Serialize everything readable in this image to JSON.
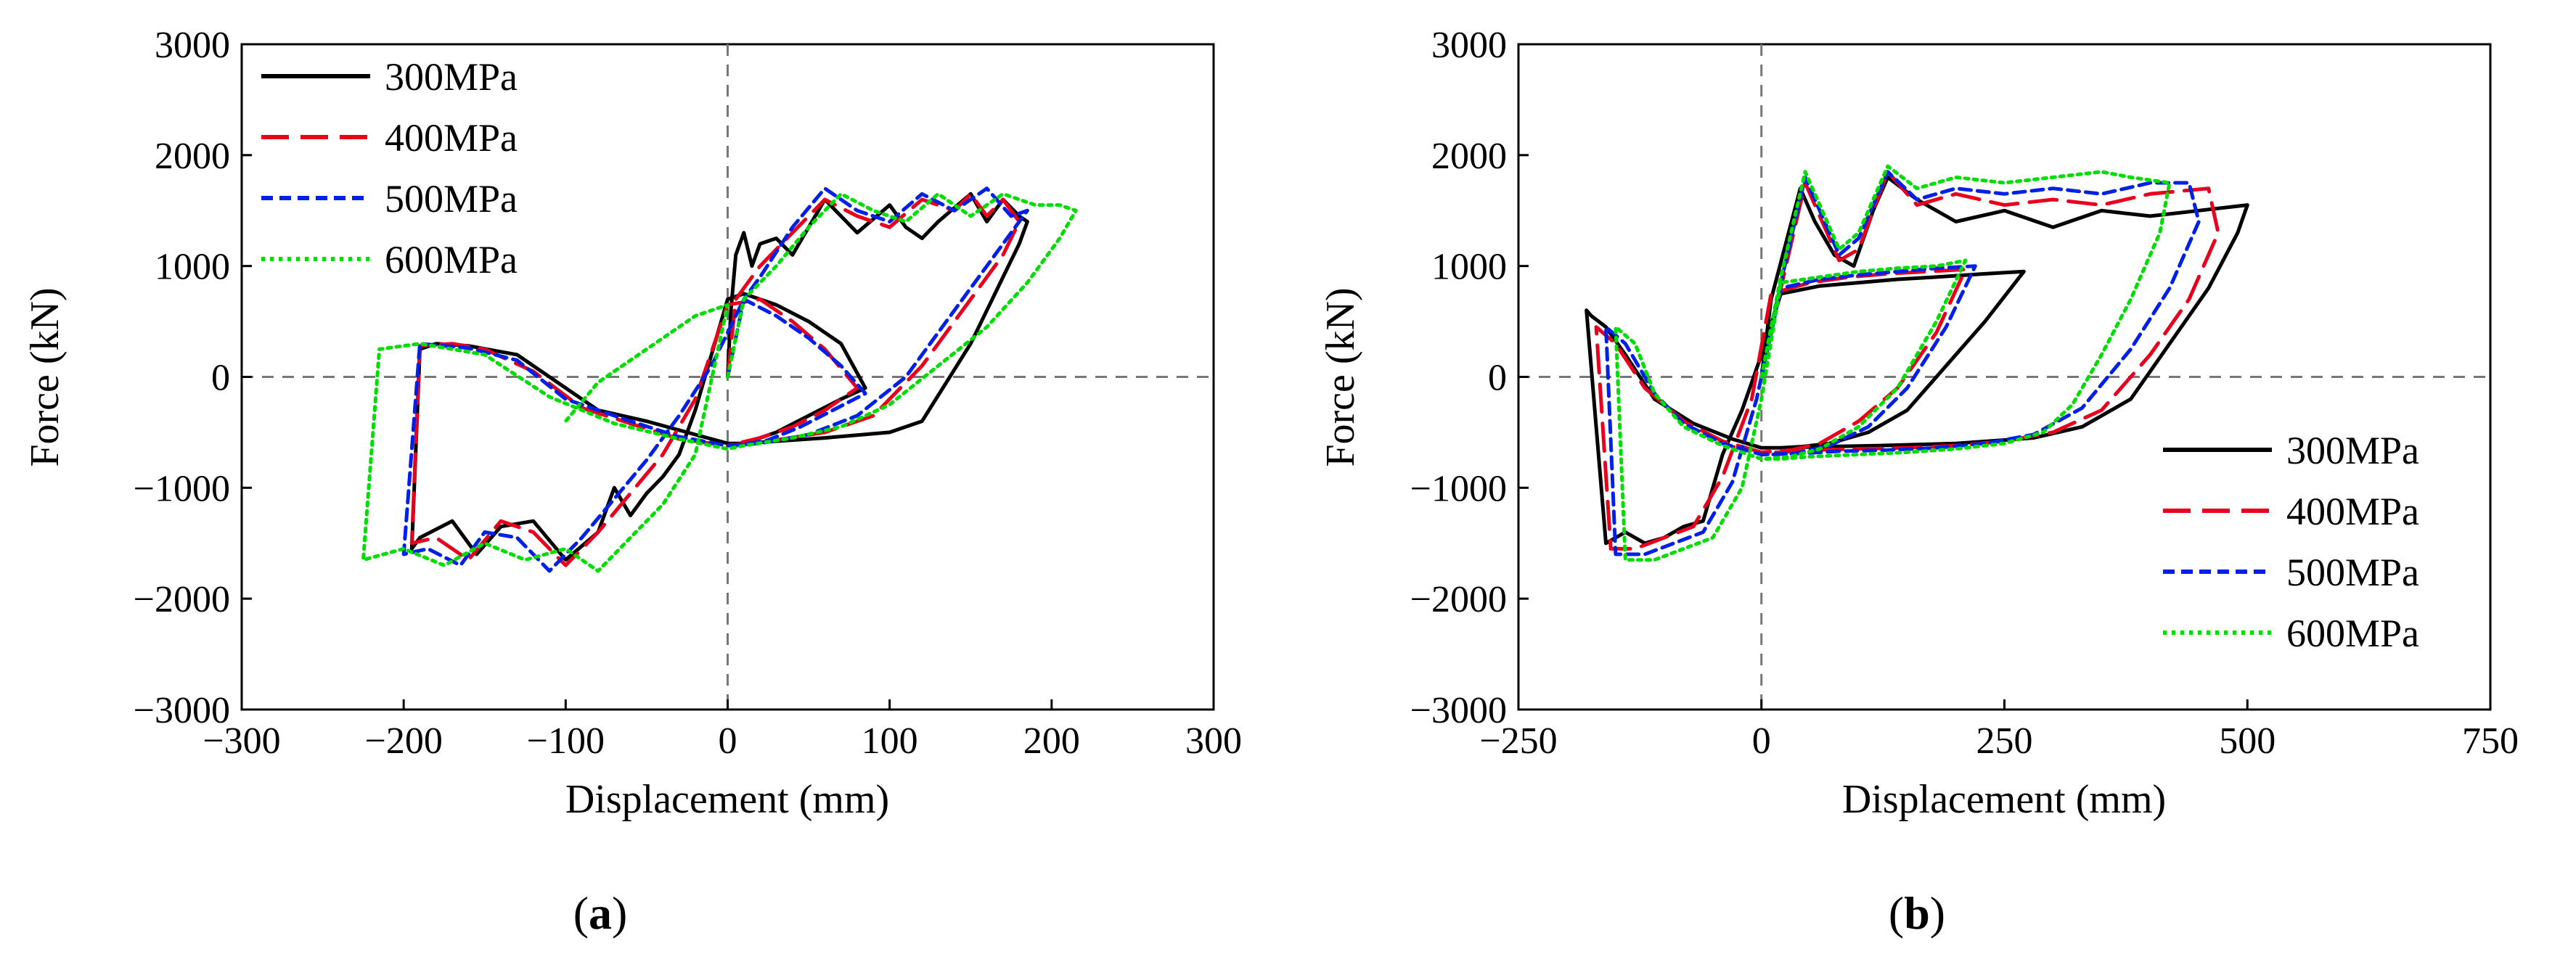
{
  "chart_data": [
    {
      "panel_label": "a",
      "type": "line",
      "title": "",
      "xlabel": "Displacement (mm)",
      "ylabel": "Force (kN)",
      "xlim": [
        -300,
        300
      ],
      "ylim": [
        -3000,
        3000
      ],
      "xticks": [
        -300,
        -200,
        -100,
        0,
        100,
        200,
        300
      ],
      "yticks": [
        -3000,
        -2000,
        -1000,
        0,
        1000,
        2000,
        3000
      ],
      "xtick_labels": [
        "−300",
        "−200",
        "−100",
        "0",
        "100",
        "200",
        "300"
      ],
      "ytick_labels": [
        "−3000",
        "−2000",
        "−1000",
        "0",
        "1000",
        "2000",
        "3000"
      ],
      "legend_position": "top-left",
      "reference_lines": {
        "x": 0,
        "y": 0
      },
      "series": [
        {
          "name": "300MPa",
          "color": "#000000",
          "dash": "solid",
          "x": [
            0,
            2,
            5,
            10,
            15,
            20,
            30,
            40,
            60,
            80,
            100,
            110,
            120,
            130,
            150,
            160,
            170,
            180,
            185,
            180,
            170,
            150,
            120,
            100,
            60,
            30,
            10,
            0,
            -20,
            -50,
            -80,
            -100,
            -130,
            -160,
            -180,
            -190,
            -195,
            -190,
            -170,
            -155,
            -140,
            -120,
            -100,
            -80,
            -70,
            -60,
            -50,
            -40,
            -30,
            -20,
            -10,
            0,
            10,
            20,
            30,
            50,
            70,
            85,
            70,
            50,
            30,
            10,
            0
          ],
          "y": [
            0,
            600,
            1100,
            1300,
            1000,
            1200,
            1250,
            1100,
            1600,
            1300,
            1550,
            1350,
            1250,
            1400,
            1650,
            1400,
            1600,
            1450,
            1400,
            1200,
            900,
            300,
            -400,
            -500,
            -550,
            -580,
            -600,
            -600,
            -520,
            -400,
            -300,
            -100,
            200,
            280,
            300,
            250,
            -1550,
            -1450,
            -1300,
            -1600,
            -1350,
            -1300,
            -1650,
            -1400,
            -1000,
            -1250,
            -1050,
            -900,
            -700,
            -300,
            200,
            700,
            750,
            700,
            650,
            500,
            300,
            -100,
            -200,
            -350,
            -500,
            -600,
            -600
          ]
        },
        {
          "name": "400MPa",
          "color": "#e8001c",
          "dash": "long-dash",
          "x": [
            0,
            5,
            10,
            20,
            40,
            60,
            80,
            100,
            120,
            140,
            150,
            160,
            170,
            180,
            170,
            150,
            120,
            90,
            60,
            30,
            0,
            -30,
            -60,
            -90,
            -120,
            -150,
            -170,
            -190,
            -195,
            -180,
            -160,
            -140,
            -120,
            -100,
            -80,
            -60,
            -40,
            -20,
            0,
            20,
            40,
            60,
            80,
            60,
            40,
            20,
            0
          ],
          "y": [
            0,
            700,
            800,
            1000,
            1300,
            1600,
            1450,
            1350,
            1600,
            1500,
            1650,
            1450,
            1600,
            1400,
            1100,
            700,
            100,
            -350,
            -500,
            -570,
            -620,
            -560,
            -420,
            -280,
            50,
            250,
            300,
            280,
            -1500,
            -1450,
            -1650,
            -1300,
            -1400,
            -1700,
            -1400,
            -1050,
            -700,
            -200,
            650,
            700,
            500,
            250,
            -100,
            -300,
            -450,
            -550,
            -620
          ]
        },
        {
          "name": "500MPa",
          "color": "#0020e8",
          "dash": "short-dash",
          "x": [
            0,
            10,
            20,
            40,
            60,
            80,
            100,
            120,
            140,
            160,
            175,
            185,
            175,
            160,
            140,
            110,
            80,
            50,
            20,
            0,
            -30,
            -60,
            -100,
            -130,
            -160,
            -190,
            -200,
            -185,
            -165,
            -150,
            -130,
            -110,
            -90,
            -70,
            -50,
            -30,
            -10,
            10,
            30,
            50,
            70,
            85,
            65,
            45,
            25,
            5
          ],
          "y": [
            0,
            700,
            900,
            1350,
            1700,
            1500,
            1400,
            1650,
            1500,
            1700,
            1450,
            1500,
            1300,
            1000,
            600,
            0,
            -350,
            -520,
            -600,
            -620,
            -540,
            -400,
            -200,
            150,
            260,
            300,
            -1600,
            -1550,
            -1700,
            -1400,
            -1450,
            -1750,
            -1450,
            -1100,
            -750,
            -350,
            100,
            700,
            550,
            350,
            100,
            -150,
            -300,
            -450,
            -570,
            -620
          ]
        },
        {
          "name": "600MPa",
          "color": "#00dd00",
          "dash": "dotted",
          "x": [
            0,
            10,
            30,
            50,
            70,
            90,
            110,
            130,
            150,
            170,
            190,
            205,
            215,
            205,
            185,
            160,
            130,
            100,
            70,
            40,
            10,
            0,
            -30,
            -70,
            -110,
            -150,
            -190,
            -215,
            -225,
            -200,
            -175,
            -150,
            -125,
            -100,
            -80,
            -60,
            -40,
            -20,
            0,
            -20,
            -50,
            -80,
            -100
          ],
          "y": [
            0,
            700,
            1000,
            1350,
            1650,
            1500,
            1400,
            1650,
            1450,
            1650,
            1550,
            1550,
            1500,
            1250,
            850,
            450,
            100,
            -250,
            -450,
            -550,
            -620,
            -650,
            -560,
            -420,
            -180,
            200,
            300,
            250,
            -1650,
            -1550,
            -1700,
            -1500,
            -1650,
            -1550,
            -1750,
            -1450,
            -1150,
            -700,
            650,
            550,
            250,
            -50,
            -400
          ]
        }
      ]
    },
    {
      "panel_label": "b",
      "type": "line",
      "title": "",
      "xlabel": "Displacement (mm)",
      "ylabel": "Force (kN)",
      "xlim": [
        -250,
        750
      ],
      "ylim": [
        -3000,
        3000
      ],
      "xticks": [
        -250,
        0,
        250,
        500,
        750
      ],
      "yticks": [
        -3000,
        -2000,
        -1000,
        0,
        1000,
        2000,
        3000
      ],
      "xtick_labels": [
        "−250",
        "0",
        "250",
        "500",
        "750"
      ],
      "ytick_labels": [
        "−3000",
        "−2000",
        "−1000",
        "0",
        "1000",
        "2000",
        "3000"
      ],
      "legend_position": "bottom-right",
      "reference_lines": {
        "x": 0,
        "y": 0
      },
      "series": [
        {
          "name": "300MPa",
          "color": "#000000",
          "dash": "solid",
          "x": [
            0,
            10,
            25,
            40,
            55,
            75,
            95,
            115,
            130,
            160,
            200,
            250,
            300,
            350,
            400,
            450,
            500,
            490,
            460,
            420,
            380,
            330,
            280,
            200,
            120,
            60,
            20,
            0,
            -30,
            -70,
            -110,
            -140,
            -160,
            -175,
            -180,
            -160,
            -140,
            -120,
            -100,
            -80,
            -60,
            -40,
            -20,
            0,
            20,
            60,
            100,
            140,
            180,
            230,
            270,
            230,
            190,
            150,
            110,
            70,
            40,
            20,
            0
          ],
          "y": [
            0,
            700,
            1200,
            1700,
            1400,
            1100,
            1000,
            1500,
            1800,
            1600,
            1400,
            1500,
            1350,
            1500,
            1450,
            1500,
            1550,
            1300,
            800,
            300,
            -200,
            -450,
            -550,
            -600,
            -620,
            -630,
            -640,
            -640,
            -560,
            -420,
            -200,
            200,
            450,
            550,
            600,
            -1500,
            -1400,
            -1500,
            -1450,
            -1350,
            -1300,
            -700,
            -300,
            200,
            750,
            820,
            850,
            880,
            900,
            930,
            950,
            500,
            100,
            -300,
            -500,
            -600,
            -630,
            -640,
            -640
          ]
        },
        {
          "name": "400MPa",
          "color": "#e8001c",
          "dash": "long-dash",
          "x": [
            0,
            20,
            45,
            60,
            80,
            100,
            130,
            160,
            200,
            250,
            300,
            350,
            400,
            460,
            470,
            440,
            400,
            350,
            300,
            250,
            200,
            150,
            100,
            50,
            20,
            0,
            -40,
            -80,
            -120,
            -150,
            -170,
            -155,
            -130,
            -100,
            -70,
            -40,
            -10,
            10,
            50,
            90,
            130,
            170,
            210,
            180,
            140,
            100,
            60,
            30,
            0
          ],
          "y": [
            0,
            800,
            1750,
            1450,
            1050,
            1150,
            1850,
            1550,
            1650,
            1550,
            1600,
            1550,
            1650,
            1700,
            1300,
            700,
            200,
            -300,
            -500,
            -580,
            -620,
            -640,
            -650,
            -660,
            -680,
            -680,
            -580,
            -400,
            -100,
            300,
            450,
            -1550,
            -1550,
            -1450,
            -1350,
            -900,
            -200,
            750,
            850,
            900,
            930,
            950,
            970,
            400,
            -100,
            -400,
            -600,
            -660,
            -680
          ]
        },
        {
          "name": "500MPa",
          "color": "#0020e8",
          "dash": "short-dash",
          "x": [
            0,
            20,
            45,
            60,
            80,
            100,
            130,
            160,
            200,
            250,
            300,
            350,
            400,
            440,
            450,
            420,
            380,
            330,
            280,
            230,
            180,
            130,
            80,
            40,
            10,
            0,
            -40,
            -80,
            -110,
            -140,
            -160,
            -150,
            -120,
            -90,
            -60,
            -30,
            -5,
            20,
            60,
            100,
            140,
            180,
            220,
            190,
            150,
            110,
            70,
            35,
            0
          ],
          "y": [
            0,
            850,
            1800,
            1500,
            1100,
            1250,
            1850,
            1600,
            1700,
            1650,
            1700,
            1650,
            1750,
            1750,
            1400,
            800,
            250,
            -280,
            -520,
            -600,
            -640,
            -660,
            -670,
            -690,
            -700,
            -700,
            -600,
            -420,
            -150,
            300,
            450,
            -1600,
            -1600,
            -1500,
            -1400,
            -950,
            -200,
            800,
            880,
            920,
            950,
            980,
            1000,
            450,
            -100,
            -450,
            -620,
            -690,
            -700
          ]
        },
        {
          "name": "600MPa",
          "color": "#00dd00",
          "dash": "dotted",
          "x": [
            0,
            20,
            45,
            60,
            80,
            100,
            130,
            160,
            200,
            250,
            300,
            350,
            380,
            420,
            410,
            380,
            350,
            320,
            290,
            250,
            200,
            150,
            100,
            50,
            20,
            0,
            -40,
            -80,
            -110,
            -130,
            -150,
            -140,
            -110,
            -80,
            -50,
            -20,
            0,
            20,
            60,
            100,
            140,
            180,
            210,
            180,
            140,
            100,
            60,
            30,
            0
          ],
          "y": [
            0,
            900,
            1850,
            1550,
            1150,
            1300,
            1900,
            1700,
            1800,
            1750,
            1800,
            1850,
            1800,
            1750,
            1300,
            700,
            200,
            -250,
            -500,
            -600,
            -650,
            -680,
            -700,
            -720,
            -740,
            -740,
            -620,
            -450,
            -150,
            300,
            450,
            -1650,
            -1650,
            -1550,
            -1450,
            -1000,
            -200,
            850,
            900,
            950,
            980,
            1000,
            1050,
            500,
            -100,
            -450,
            -650,
            -720,
            -740
          ]
        }
      ]
    }
  ]
}
